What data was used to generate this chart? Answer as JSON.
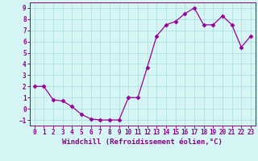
{
  "x": [
    0,
    1,
    2,
    3,
    4,
    5,
    6,
    7,
    8,
    9,
    10,
    11,
    12,
    13,
    14,
    15,
    16,
    17,
    18,
    19,
    20,
    21,
    22,
    23
  ],
  "y": [
    2,
    2,
    0.8,
    0.7,
    0.2,
    -0.5,
    -0.9,
    -1.0,
    -1.0,
    -1.0,
    1.0,
    1.0,
    3.7,
    6.5,
    7.5,
    7.8,
    8.5,
    9.0,
    7.5,
    7.5,
    8.3,
    7.5,
    5.5,
    6.5
  ],
  "xlabel": "Windchill (Refroidissement éolien,°C)",
  "line_color": "#990099",
  "marker": "D",
  "marker_size": 2.5,
  "bg_color": "#d6f5f5",
  "grid_color": "#aadddd",
  "ylim": [
    -1.5,
    9.5
  ],
  "xlim": [
    -0.5,
    23.5
  ],
  "yticks": [
    -1,
    0,
    1,
    2,
    3,
    4,
    5,
    6,
    7,
    8,
    9
  ],
  "xticks": [
    0,
    1,
    2,
    3,
    4,
    5,
    6,
    7,
    8,
    9,
    10,
    11,
    12,
    13,
    14,
    15,
    16,
    17,
    18,
    19,
    20,
    21,
    22,
    23
  ],
  "tick_fontsize": 5.5,
  "label_fontsize": 6.5,
  "text_color": "#880088"
}
